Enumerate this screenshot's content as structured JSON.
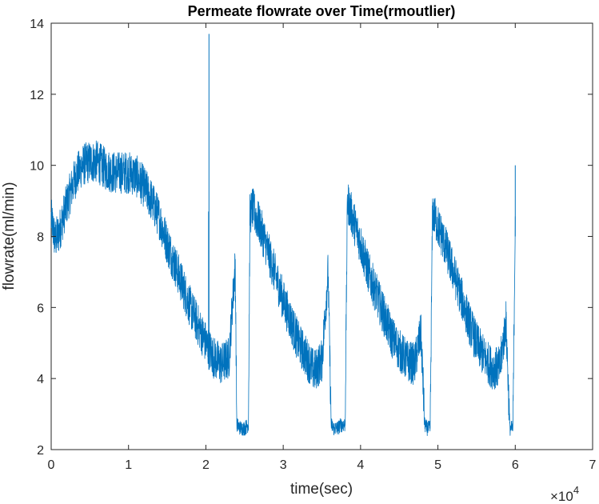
{
  "chart_data": {
    "type": "line",
    "title": "Permeate flowrate over Time(rmoutlier)",
    "xlabel": "time(sec)",
    "ylabel": "flowrate(ml/min)",
    "xlim": [
      0,
      70000
    ],
    "ylim": [
      2,
      14
    ],
    "x_tick_labels": [
      "0",
      "1",
      "2",
      "3",
      "4",
      "5",
      "6",
      "7"
    ],
    "x_tick_values": [
      0,
      10000,
      20000,
      30000,
      40000,
      50000,
      60000,
      70000
    ],
    "x_multiplier": {
      "times": "×10",
      "power": "4"
    },
    "y_ticks": [
      2,
      4,
      6,
      8,
      10,
      12,
      14
    ],
    "grid": false,
    "line_color": "#0072BD",
    "series": [
      {
        "x": [
          0,
          500,
          1000,
          2000,
          3000,
          4000,
          5000,
          6000,
          7000,
          8000,
          9000,
          10000,
          11000,
          12000,
          13000,
          14000,
          15000,
          16000,
          17000,
          18000,
          19000,
          20000,
          21000,
          22000,
          23000,
          23400,
          23800,
          24000,
          24500,
          25000,
          25500,
          25700,
          26000,
          27000,
          28000,
          29000,
          30000,
          31000,
          32000,
          33000,
          34000,
          35000,
          35800,
          36200,
          36500,
          37000,
          37500,
          38000,
          38300,
          38600,
          39000,
          40000,
          41000,
          42000,
          43000,
          44000,
          45000,
          46000,
          47000,
          47800,
          48300,
          48600,
          49000,
          49300,
          50000,
          51000,
          52000,
          53000,
          54000,
          55000,
          56000,
          57000,
          58000,
          58800,
          59300,
          59700,
          60000
        ],
        "y": [
          8.5,
          7.9,
          8.1,
          8.9,
          9.6,
          10.0,
          10.1,
          10.1,
          9.9,
          9.8,
          9.8,
          9.8,
          9.7,
          9.4,
          9.0,
          8.5,
          7.8,
          7.2,
          6.6,
          6.0,
          5.5,
          5.0,
          4.6,
          4.4,
          4.6,
          6.0,
          7.2,
          2.7,
          2.6,
          2.6,
          2.7,
          8.6,
          8.8,
          8.3,
          7.6,
          6.9,
          6.2,
          5.6,
          5.0,
          4.6,
          4.2,
          4.5,
          7.0,
          2.7,
          2.6,
          2.6,
          2.7,
          2.7,
          9.0,
          8.8,
          8.5,
          7.8,
          7.0,
          6.4,
          5.8,
          5.2,
          4.8,
          4.5,
          4.4,
          5.3,
          2.7,
          2.6,
          2.6,
          8.7,
          8.3,
          7.7,
          7.0,
          6.3,
          5.6,
          5.0,
          4.6,
          4.3,
          4.3,
          5.6,
          2.6,
          2.6,
          8.6
        ],
        "noise_amplitude": 0.6
      }
    ]
  }
}
